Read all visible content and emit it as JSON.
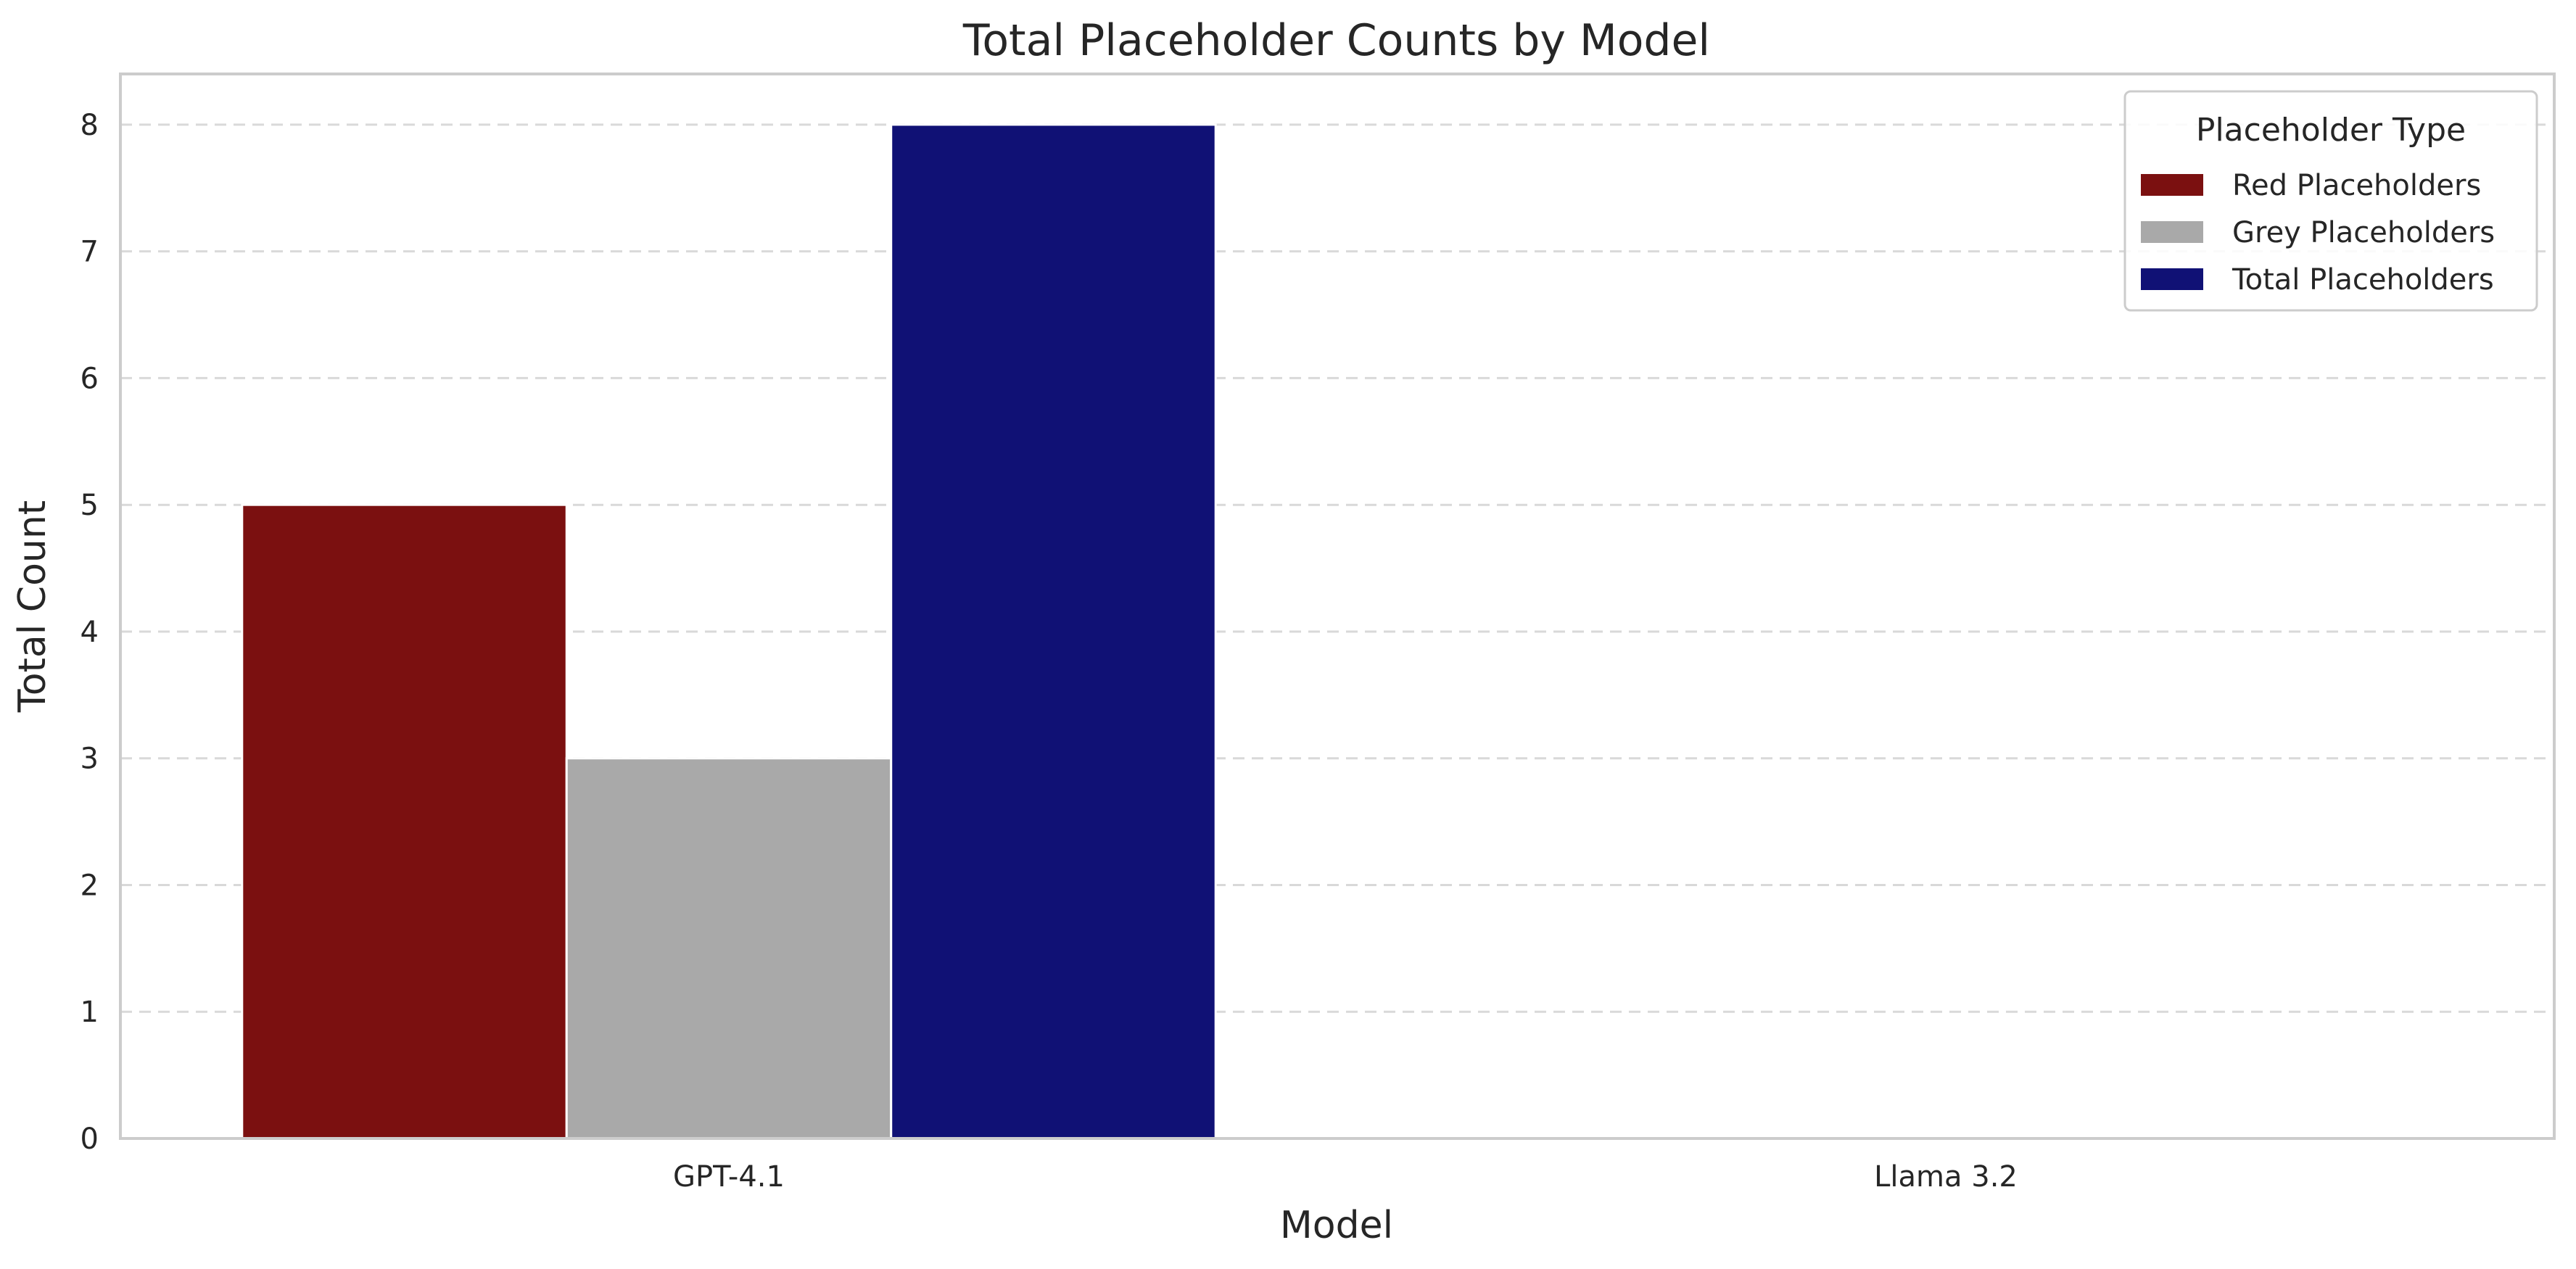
{
  "chart_data": {
    "type": "bar",
    "title": "Total Placeholder Counts by Model",
    "xlabel": "Model",
    "ylabel": "Total Count",
    "categories": [
      "GPT-4.1",
      "Llama 3.2"
    ],
    "series": [
      {
        "name": "Red Placeholders",
        "color": "#7b1010",
        "values": [
          5,
          0
        ]
      },
      {
        "name": "Grey Placeholders",
        "color": "#a9a9a9",
        "values": [
          3,
          0
        ]
      },
      {
        "name": "Total Placeholders",
        "color": "#101175",
        "values": [
          8,
          0
        ]
      }
    ],
    "ylim": [
      0,
      8.4
    ],
    "yticks": [
      0,
      1,
      2,
      3,
      4,
      5,
      6,
      7,
      8
    ],
    "grid": "y-dashed",
    "legend": {
      "title": "Placeholder Type",
      "placement": "top-right"
    }
  }
}
